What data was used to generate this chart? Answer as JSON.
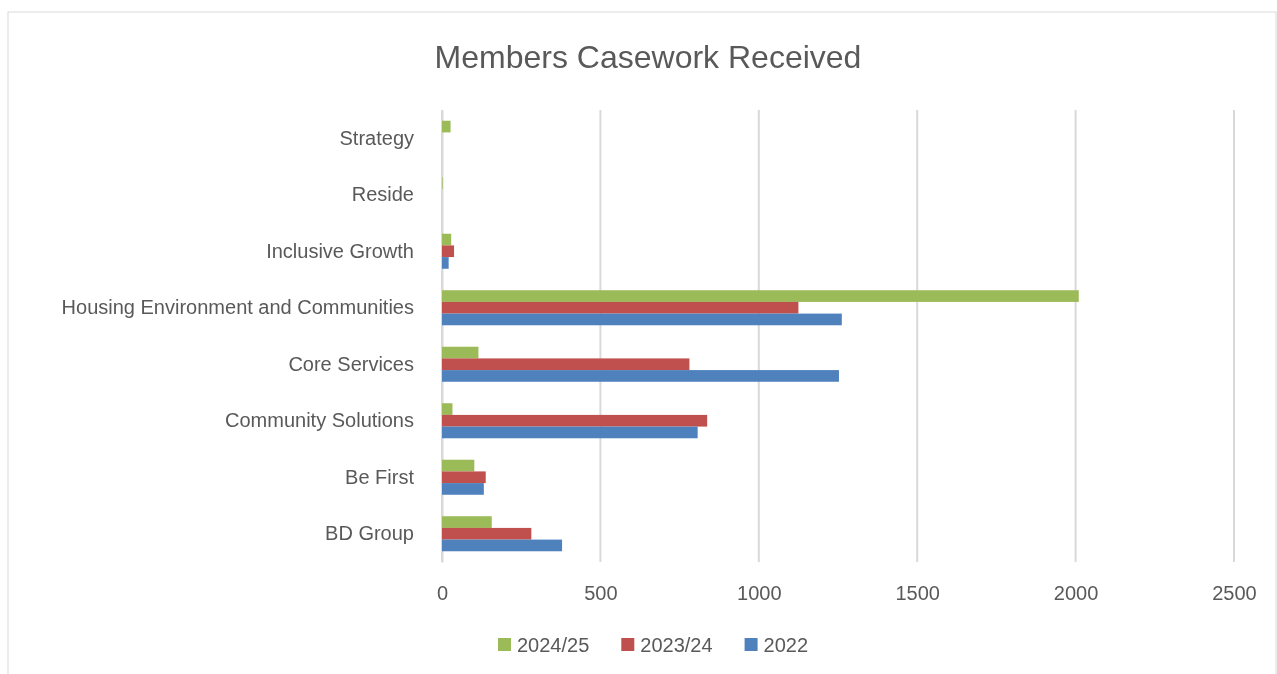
{
  "chart_data": {
    "type": "bar",
    "orientation": "horizontal",
    "title": "Members Casework Received",
    "categories": [
      "Strategy",
      "Reside",
      "Inclusive Growth",
      "Housing Environment and Communities",
      "Core Services",
      "Community Solutions",
      "Be First",
      "BD Group"
    ],
    "series": [
      {
        "name": "2024/25",
        "color": "#9bbb59",
        "values": [
          27,
          2,
          29,
          2010,
          115,
          33,
          102,
          157
        ]
      },
      {
        "name": "2023/24",
        "color": "#c0504d",
        "values": [
          null,
          null,
          38,
          1125,
          781,
          837,
          138,
          282
        ]
      },
      {
        "name": "2022",
        "color": "#4f81bd",
        "values": [
          null,
          null,
          21,
          1262,
          1253,
          807,
          132,
          379
        ]
      }
    ],
    "xlim": [
      0,
      2500
    ],
    "xticks": [
      0,
      500,
      1000,
      1500,
      2000,
      2500
    ],
    "grid": "x",
    "legend": "bottom"
  }
}
